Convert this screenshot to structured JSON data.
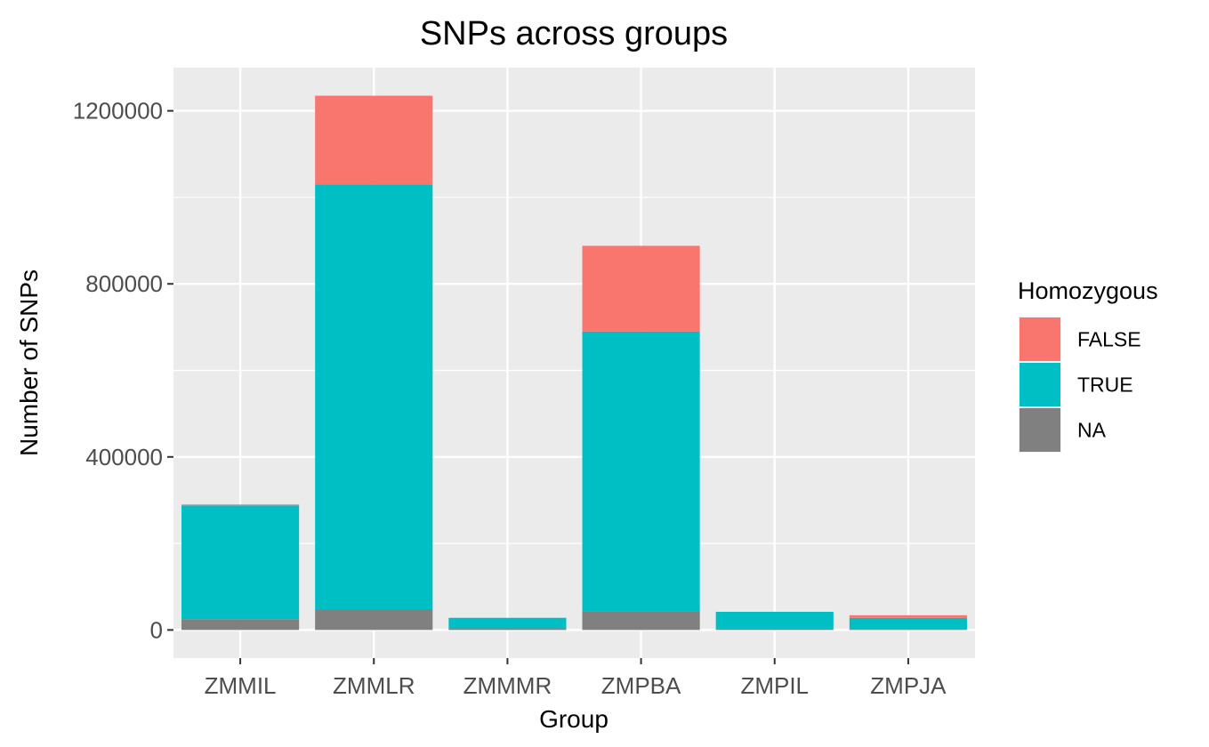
{
  "chart_data": {
    "type": "bar",
    "stacked": true,
    "title": "SNPs across groups",
    "xlabel": "Group",
    "ylabel": "Number of SNPs",
    "categories": [
      "ZMMIL",
      "ZMMLR",
      "ZMMMR",
      "ZMPBA",
      "ZMPIL",
      "ZMPJA"
    ],
    "series": [
      {
        "name": "NA",
        "color": "#808080",
        "values": [
          25000,
          48000,
          4000,
          42000,
          3000,
          2000
        ]
      },
      {
        "name": "TRUE",
        "color": "#00BFC4",
        "values": [
          263000,
          982000,
          24000,
          648000,
          39000,
          26000
        ]
      },
      {
        "name": "FALSE",
        "color": "#F8766D",
        "values": [
          2000,
          205000,
          0,
          198000,
          0,
          6000
        ]
      }
    ],
    "ylim": [
      -65000,
      1300000
    ],
    "yticks": [
      0,
      400000,
      800000,
      1200000
    ],
    "ytick_labels": [
      "0",
      "400000",
      "800000",
      "1200000"
    ],
    "grid": true,
    "legend": {
      "title": "Homozygous",
      "position": "right",
      "entries": [
        "FALSE",
        "TRUE",
        "NA"
      ]
    },
    "panel_background": "#EBEBEB",
    "gridline_color": "#FFFFFF"
  }
}
